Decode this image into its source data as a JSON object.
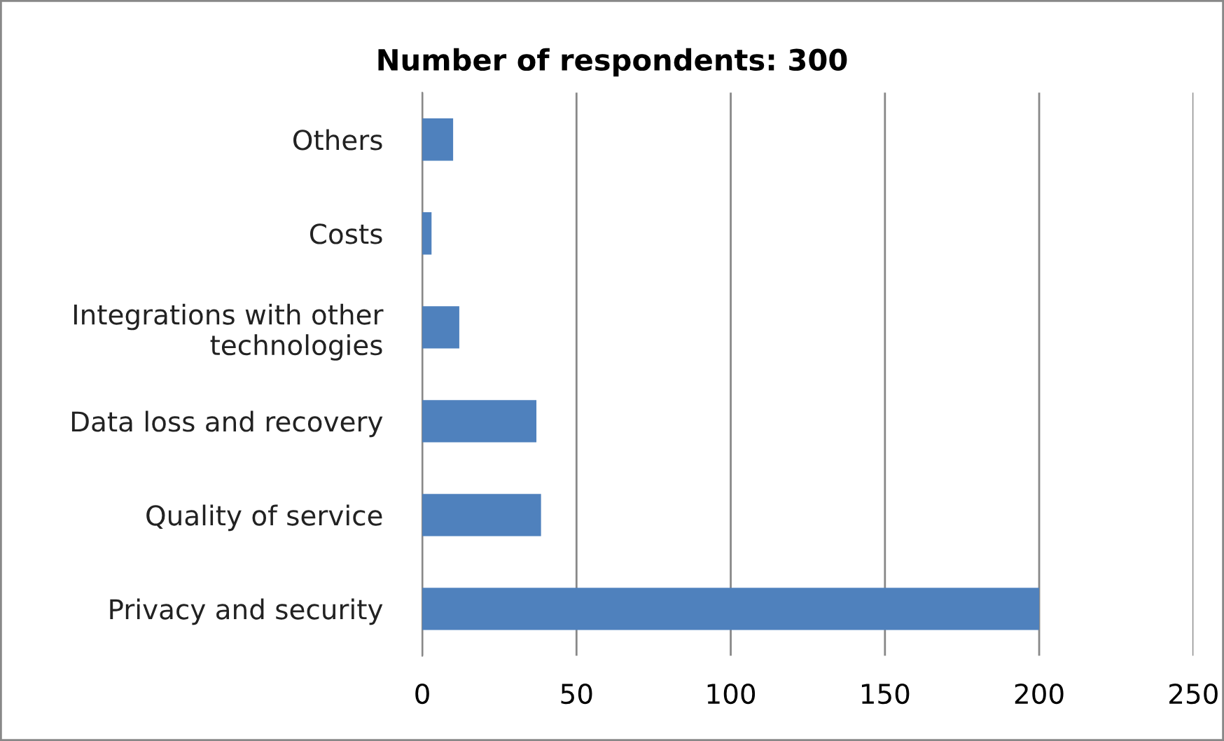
{
  "chart_data": {
    "type": "bar",
    "orientation": "horizontal",
    "title": "Number of respondents: 300",
    "categories": [
      "Others",
      "Costs",
      "Integrations with other\ntechnologies",
      "Data loss and recovery",
      "Quality of service",
      "Privacy and security"
    ],
    "values": [
      10,
      3,
      12,
      37,
      38.5,
      200
    ],
    "color": "#4f81bd",
    "xlim": [
      0,
      250
    ],
    "xticks": [
      0,
      50,
      100,
      150,
      200,
      250
    ],
    "grid": "x",
    "legend": false
  }
}
